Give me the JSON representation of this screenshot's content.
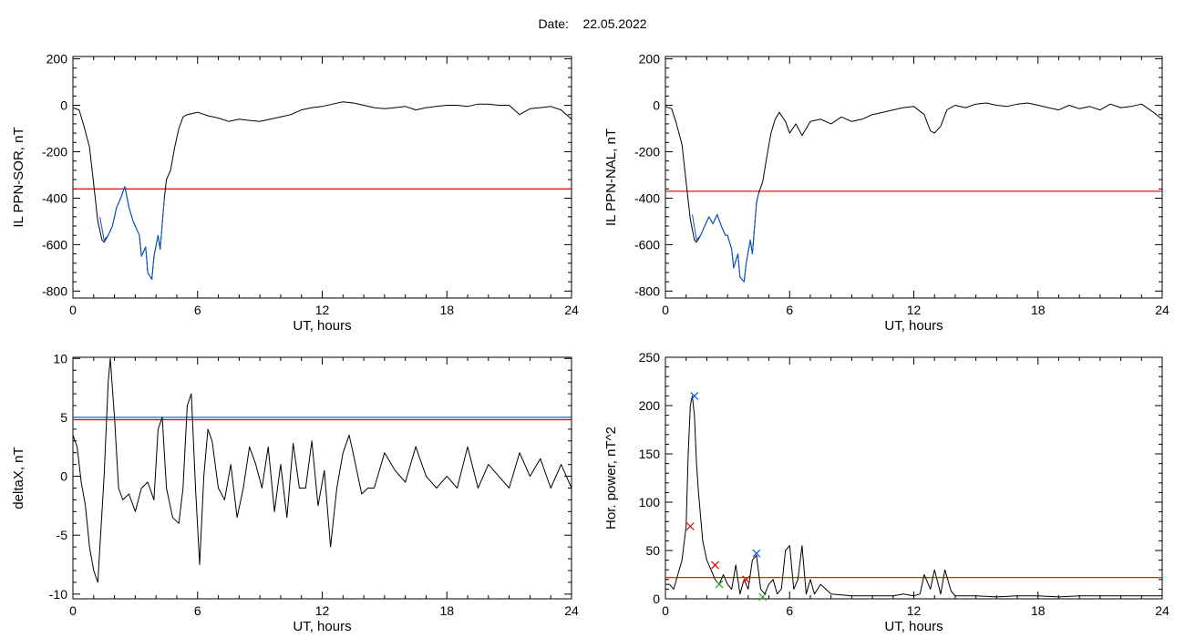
{
  "header": {
    "date_label": "Date:",
    "date_value": "22.05.2022"
  },
  "colors": {
    "black": "#000000",
    "red": "#e00000",
    "blue": "#0055d4",
    "green": "#22a022",
    "axis": "#000000"
  },
  "chart_data": [
    {
      "type": "line",
      "id": "p1",
      "xlabel": "UT, hours",
      "ylabel": "IL PPN-SOR, nT",
      "xlim": [
        0,
        24
      ],
      "ylim": [
        -830,
        210
      ],
      "xticks": [
        0,
        6,
        12,
        18,
        24
      ],
      "yticks": [
        200,
        0,
        -200,
        -400,
        -600,
        -800
      ],
      "threshold": {
        "value": -360,
        "color": "#e00000"
      },
      "series": [
        {
          "color": "#000000",
          "x": [
            0,
            0.3,
            0.5,
            0.8,
            1.0,
            1.2,
            1.4,
            1.5,
            1.7,
            1.9,
            2.1,
            2.3,
            2.5,
            2.7,
            2.9,
            3.0,
            3.2,
            3.3,
            3.5,
            3.6,
            3.8,
            3.9,
            4.1,
            4.2,
            4.4,
            4.5,
            4.7,
            4.9,
            5.1,
            5.3,
            5.5,
            6.0,
            6.5,
            7.0,
            7.5,
            8.0,
            8.5,
            9.0,
            9.5,
            10.0,
            10.5,
            11.0,
            11.5,
            12.0,
            12.5,
            13.0,
            13.5,
            14.0,
            14.5,
            15.0,
            15.5,
            16.0,
            16.5,
            17.0,
            17.5,
            18.0,
            18.5,
            19.0,
            19.5,
            20.0,
            20.5,
            21.0,
            21.5,
            22.0,
            22.5,
            23.0,
            23.5,
            24.0
          ],
          "y": [
            -10,
            -20,
            -80,
            -180,
            -340,
            -500,
            -580,
            -590,
            -560,
            -520,
            -440,
            -400,
            -350,
            -440,
            -500,
            -520,
            -560,
            -650,
            -610,
            -720,
            -750,
            -650,
            -560,
            -620,
            -400,
            -320,
            -280,
            -180,
            -100,
            -50,
            -40,
            -30,
            -45,
            -55,
            -70,
            -60,
            -65,
            -70,
            -60,
            -50,
            -40,
            -20,
            -10,
            -5,
            5,
            15,
            10,
            0,
            -10,
            -15,
            -10,
            -5,
            -20,
            -10,
            -5,
            0,
            0,
            -5,
            5,
            5,
            0,
            0,
            -40,
            -15,
            -10,
            -5,
            -20,
            -60
          ]
        },
        {
          "color": "#0055d4",
          "x": [
            1.3,
            1.5,
            1.7,
            1.9,
            2.1,
            2.3,
            2.5,
            2.7,
            2.9,
            3.0,
            3.2,
            3.3,
            3.5,
            3.6,
            3.8,
            3.9,
            4.1,
            4.2,
            4.4
          ],
          "y": [
            -480,
            -580,
            -560,
            -520,
            -440,
            -400,
            -350,
            -440,
            -500,
            -520,
            -560,
            -650,
            -610,
            -720,
            -750,
            -650,
            -560,
            -620,
            -400
          ]
        }
      ]
    },
    {
      "type": "line",
      "id": "p2",
      "xlabel": "UT, hours",
      "ylabel": "IL PPN-NAL, nT",
      "xlim": [
        0,
        24
      ],
      "ylim": [
        -830,
        210
      ],
      "xticks": [
        0,
        6,
        12,
        18,
        24
      ],
      "yticks": [
        200,
        0,
        -200,
        -400,
        -600,
        -800
      ],
      "threshold": {
        "value": -370,
        "color": "#e00000"
      },
      "series": [
        {
          "color": "#000000",
          "x": [
            0,
            0.3,
            0.5,
            0.8,
            1.0,
            1.2,
            1.4,
            1.5,
            1.7,
            1.9,
            2.1,
            2.3,
            2.5,
            2.7,
            2.9,
            3.0,
            3.2,
            3.3,
            3.5,
            3.6,
            3.8,
            3.9,
            4.1,
            4.2,
            4.4,
            4.5,
            4.7,
            4.9,
            5.1,
            5.3,
            5.5,
            5.8,
            6.0,
            6.3,
            6.6,
            7.0,
            7.5,
            8.0,
            8.5,
            9.0,
            9.5,
            10.0,
            10.5,
            11.0,
            11.5,
            12.0,
            12.5,
            12.8,
            13.0,
            13.3,
            13.6,
            14.0,
            14.5,
            15.0,
            15.5,
            16.0,
            16.5,
            17.0,
            17.5,
            18.0,
            18.5,
            19.0,
            19.5,
            20.0,
            20.5,
            21.0,
            21.5,
            22.0,
            22.5,
            23.0,
            23.5,
            24.0
          ],
          "y": [
            -5,
            -15,
            -70,
            -170,
            -330,
            -490,
            -580,
            -590,
            -560,
            -520,
            -480,
            -510,
            -470,
            -520,
            -560,
            -560,
            -620,
            -700,
            -640,
            -740,
            -760,
            -680,
            -580,
            -640,
            -420,
            -380,
            -330,
            -220,
            -120,
            -60,
            -30,
            -70,
            -120,
            -80,
            -130,
            -70,
            -60,
            -80,
            -50,
            -70,
            -60,
            -40,
            -30,
            -20,
            -10,
            -5,
            -40,
            -110,
            -120,
            -90,
            -20,
            0,
            -10,
            5,
            10,
            0,
            -5,
            5,
            10,
            0,
            -10,
            -20,
            0,
            -15,
            -5,
            -20,
            5,
            -10,
            -5,
            5,
            -25,
            -60
          ]
        },
        {
          "color": "#0055d4",
          "x": [
            1.3,
            1.5,
            1.7,
            1.9,
            2.1,
            2.3,
            2.5,
            2.7,
            2.9,
            3.0,
            3.2,
            3.3,
            3.5,
            3.6,
            3.8,
            3.9,
            4.1,
            4.2,
            4.4,
            4.5
          ],
          "y": [
            -470,
            -580,
            -560,
            -520,
            -480,
            -510,
            -470,
            -520,
            -560,
            -560,
            -620,
            -700,
            -640,
            -740,
            -760,
            -680,
            -580,
            -640,
            -420,
            -380
          ]
        }
      ]
    },
    {
      "type": "line",
      "id": "p3",
      "xlabel": "UT, hours",
      "ylabel": "deltaX, nT",
      "xlim": [
        0,
        24
      ],
      "ylim": [
        -10.4,
        10.1
      ],
      "xticks": [
        0,
        6,
        12,
        18,
        24
      ],
      "yticks": [
        10,
        5,
        0,
        -5,
        -10
      ],
      "threshold": {
        "value": 4.8,
        "color": "#e00000"
      },
      "threshold2": {
        "value": 5.0,
        "color": "#0055d4"
      },
      "series": [
        {
          "color": "#000000",
          "x": [
            0,
            0.2,
            0.4,
            0.6,
            0.8,
            1.0,
            1.2,
            1.3,
            1.5,
            1.7,
            1.8,
            2.0,
            2.2,
            2.4,
            2.7,
            3.0,
            3.3,
            3.6,
            3.9,
            4.1,
            4.3,
            4.5,
            4.8,
            5.1,
            5.3,
            5.5,
            5.7,
            5.9,
            6.1,
            6.3,
            6.5,
            6.7,
            7.0,
            7.3,
            7.6,
            7.9,
            8.2,
            8.5,
            8.8,
            9.1,
            9.4,
            9.7,
            10.0,
            10.3,
            10.6,
            10.9,
            11.2,
            11.5,
            11.8,
            12.1,
            12.4,
            12.7,
            13.0,
            13.3,
            13.6,
            13.9,
            14.2,
            14.5,
            15.0,
            15.5,
            16.0,
            16.5,
            17.0,
            17.5,
            18.0,
            18.5,
            19.0,
            19.5,
            20.0,
            20.5,
            21.0,
            21.5,
            22.0,
            22.5,
            23.0,
            23.5,
            24.0
          ],
          "y": [
            3.5,
            2.5,
            -0.5,
            -2.5,
            -6,
            -8,
            -9,
            -6,
            0,
            8,
            10,
            5,
            -1,
            -2,
            -1.5,
            -3,
            -1,
            -0.5,
            -2,
            4,
            5,
            -1,
            -3.5,
            -4,
            -1,
            6,
            7,
            -1,
            -7.5,
            0,
            4,
            3,
            -1,
            -2,
            1,
            -3.5,
            -1,
            2.5,
            1,
            -1,
            2.5,
            -3,
            1,
            -3.5,
            2.8,
            -1,
            -1,
            3,
            -2.5,
            0.5,
            -6,
            -1,
            2,
            3.5,
            1,
            -1.5,
            -1,
            -1,
            2,
            0.5,
            -0.5,
            2.5,
            0,
            -1,
            0,
            -1,
            2.5,
            -1,
            1,
            0,
            -1,
            2,
            0,
            1.5,
            -1,
            1,
            -1
          ]
        }
      ]
    },
    {
      "type": "line",
      "id": "p4",
      "xlabel": "UT, hours",
      "ylabel": "Hor. power, nT^2",
      "xlim": [
        0,
        24
      ],
      "ylim": [
        0,
        250
      ],
      "xticks": [
        0,
        6,
        12,
        18,
        24
      ],
      "yticks": [
        250,
        200,
        150,
        100,
        50,
        0
      ],
      "threshold": {
        "value": 22,
        "color": "#e00000"
      },
      "series": [
        {
          "color": "#000000",
          "x": [
            0,
            0.2,
            0.4,
            0.6,
            0.8,
            1.0,
            1.1,
            1.2,
            1.3,
            1.4,
            1.5,
            1.6,
            1.8,
            2.0,
            2.2,
            2.4,
            2.6,
            2.8,
            3.0,
            3.2,
            3.4,
            3.6,
            3.8,
            4.0,
            4.2,
            4.4,
            4.6,
            4.8,
            5.0,
            5.2,
            5.4,
            5.6,
            5.8,
            6.0,
            6.2,
            6.4,
            6.6,
            6.8,
            7.0,
            7.2,
            7.5,
            8.0,
            9.0,
            10.0,
            11.0,
            11.5,
            12.0,
            12.3,
            12.5,
            12.8,
            13.0,
            13.3,
            13.5,
            13.8,
            14.0,
            15.0,
            16.0,
            17.0,
            18.0,
            19.0,
            20.0,
            21.0,
            22.0,
            23.0,
            24.0
          ],
          "y": [
            15,
            15,
            10,
            25,
            40,
            75,
            150,
            200,
            210,
            190,
            140,
            110,
            60,
            40,
            30,
            20,
            15,
            25,
            15,
            10,
            35,
            5,
            20,
            10,
            40,
            45,
            10,
            5,
            15,
            20,
            5,
            10,
            50,
            55,
            10,
            20,
            55,
            5,
            20,
            5,
            15,
            5,
            3,
            3,
            3,
            5,
            3,
            5,
            25,
            10,
            30,
            5,
            30,
            8,
            3,
            3,
            2,
            3,
            3,
            2,
            3,
            3,
            3,
            3,
            3
          ]
        }
      ],
      "markers": [
        {
          "x": 1.4,
          "y": 210,
          "color": "#0055d4"
        },
        {
          "x": 1.2,
          "y": 75,
          "color": "#e00000"
        },
        {
          "x": 2.4,
          "y": 35,
          "color": "#e00000"
        },
        {
          "x": 4.4,
          "y": 47,
          "color": "#0055d4"
        },
        {
          "x": 2.6,
          "y": 15,
          "color": "#22a022"
        },
        {
          "x": 4.7,
          "y": 2,
          "color": "#22a022"
        },
        {
          "x": 3.9,
          "y": 20,
          "color": "#e00000"
        }
      ]
    }
  ]
}
